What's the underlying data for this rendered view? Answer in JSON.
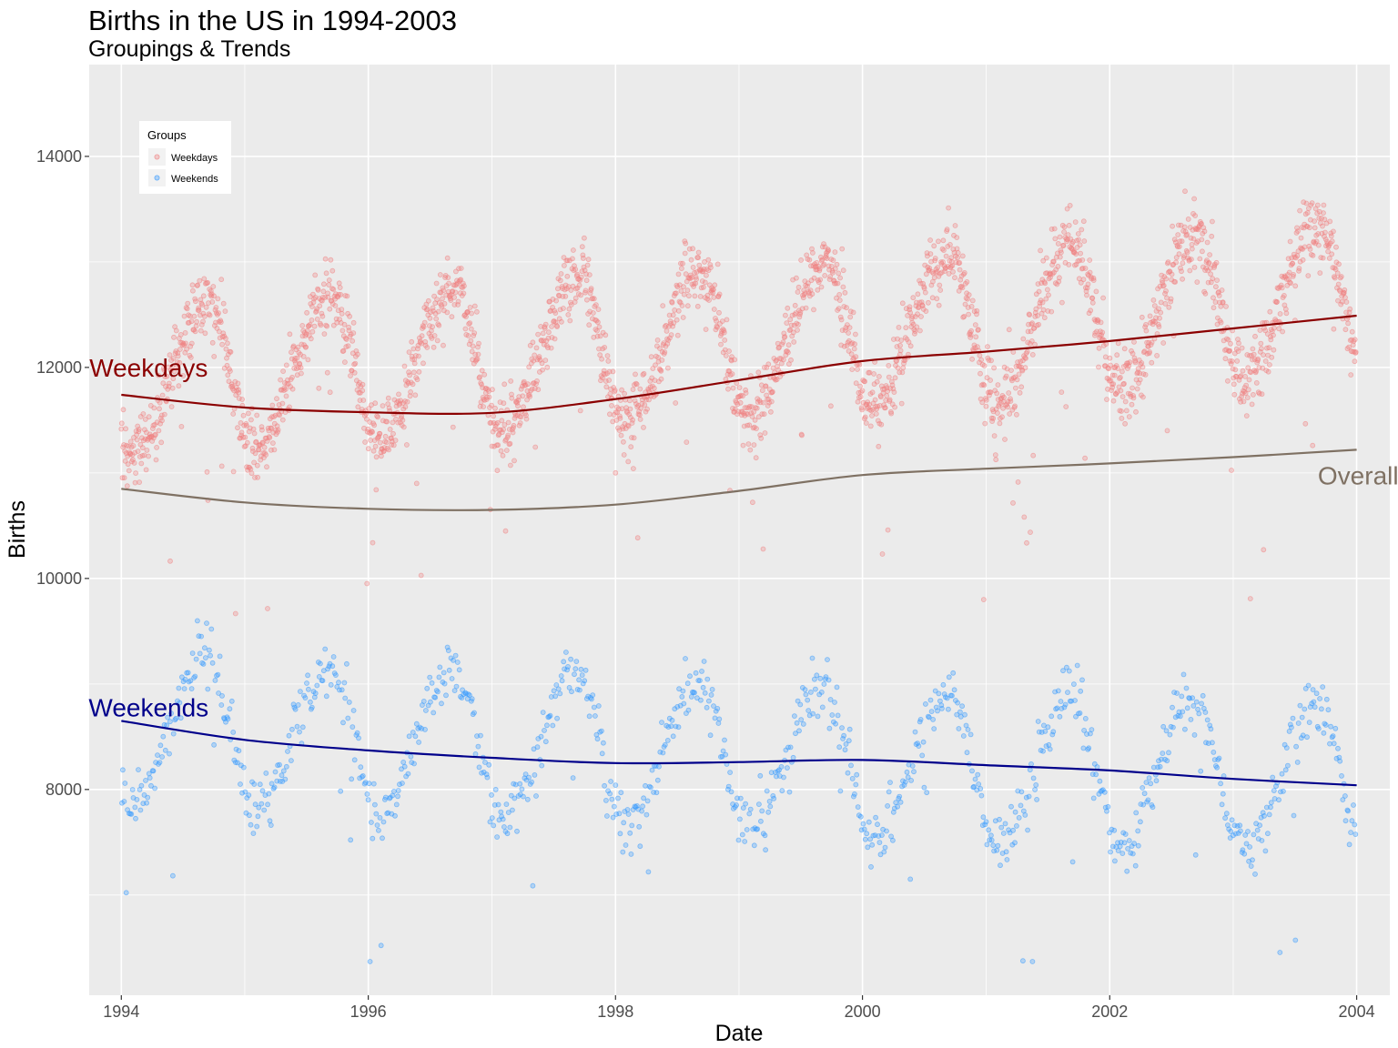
{
  "chart_data": {
    "type": "scatter",
    "title": "Births in the US in 1994-2003",
    "subtitle": "Groupings & Trends",
    "xlabel": "Date",
    "ylabel": "Births",
    "xlim": [
      "1993-09-28",
      "2004-04-08"
    ],
    "ylim": [
      6050,
      14870
    ],
    "x_ticks": [
      {
        "label": "1994",
        "date": "1994-01-01"
      },
      {
        "label": "1996",
        "date": "1996-01-01"
      },
      {
        "label": "1998",
        "date": "1998-01-01"
      },
      {
        "label": "2000",
        "date": "2000-01-01"
      },
      {
        "label": "2002",
        "date": "2002-01-01"
      },
      {
        "label": "2004",
        "date": "2004-01-01"
      }
    ],
    "y_ticks": [
      8000,
      10000,
      12000,
      14000
    ],
    "grid": true,
    "legend": {
      "title": "Groups",
      "position": "top-left",
      "entries": [
        {
          "label": "Weekdays",
          "color": "#f8766d"
        },
        {
          "label": "Weekends",
          "color": "#00bfc4"
        }
      ]
    },
    "colors": {
      "weekday_points": "#f08080",
      "weekend_points": "#3399ff",
      "weekday_trend": "#8b0000",
      "weekend_trend": "#00008b",
      "overall_trend": "#7f7163",
      "panel_bg": "#ebebeb"
    },
    "point_series": [
      {
        "name": "Weekdays",
        "seasonal_pattern": {
          "period_years": 1,
          "trough_date": "1994-02-01",
          "trough_value": 11150,
          "peak_date": "1994-09-10",
          "peak_value": 12550,
          "yearly_drift": 80,
          "spread": 300,
          "count": 2610
        }
      },
      {
        "name": "Weekends",
        "seasonal_pattern": {
          "period_years": 1,
          "trough_date": "1994-02-01",
          "trough_value": 7900,
          "peak_date": "1994-09-10",
          "peak_value": 9300,
          "yearly_drift": -55,
          "spread": 250,
          "count": 1043
        }
      }
    ],
    "trend_series": [
      {
        "name": "Weekdays",
        "label": "Weekdays",
        "color": "#8b0000",
        "points": [
          {
            "date": "1994-01-01",
            "value": 11740
          },
          {
            "date": "1995-01-01",
            "value": 11620
          },
          {
            "date": "1996-01-01",
            "value": 11575
          },
          {
            "date": "1997-01-01",
            "value": 11570
          },
          {
            "date": "1998-01-01",
            "value": 11700
          },
          {
            "date": "1999-01-01",
            "value": 11880
          },
          {
            "date": "2000-01-01",
            "value": 12060
          },
          {
            "date": "2001-01-01",
            "value": 12150
          },
          {
            "date": "2002-01-01",
            "value": 12250
          },
          {
            "date": "2003-01-01",
            "value": 12370
          },
          {
            "date": "2004-01-01",
            "value": 12490
          }
        ]
      },
      {
        "name": "Overall",
        "label": "Overall",
        "color": "#7f7163",
        "points": [
          {
            "date": "1994-01-01",
            "value": 10850
          },
          {
            "date": "1995-01-01",
            "value": 10720
          },
          {
            "date": "1996-01-01",
            "value": 10660
          },
          {
            "date": "1997-01-01",
            "value": 10650
          },
          {
            "date": "1998-01-01",
            "value": 10700
          },
          {
            "date": "1999-01-01",
            "value": 10830
          },
          {
            "date": "2000-01-01",
            "value": 10980
          },
          {
            "date": "2001-01-01",
            "value": 11040
          },
          {
            "date": "2002-01-01",
            "value": 11090
          },
          {
            "date": "2003-01-01",
            "value": 11150
          },
          {
            "date": "2004-01-01",
            "value": 11220
          }
        ]
      },
      {
        "name": "Weekends",
        "label": "Weekends",
        "color": "#00008b",
        "points": [
          {
            "date": "1994-01-01",
            "value": 8650
          },
          {
            "date": "1995-01-01",
            "value": 8470
          },
          {
            "date": "1996-01-01",
            "value": 8370
          },
          {
            "date": "1997-01-01",
            "value": 8300
          },
          {
            "date": "1998-01-01",
            "value": 8250
          },
          {
            "date": "1999-01-01",
            "value": 8260
          },
          {
            "date": "2000-01-01",
            "value": 8280
          },
          {
            "date": "2001-01-01",
            "value": 8230
          },
          {
            "date": "2002-01-01",
            "value": 8180
          },
          {
            "date": "2003-01-01",
            "value": 8100
          },
          {
            "date": "2004-01-01",
            "value": 8040
          }
        ]
      }
    ]
  }
}
